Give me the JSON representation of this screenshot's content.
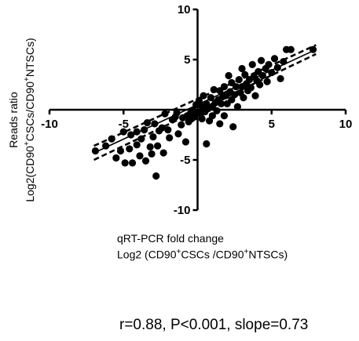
{
  "chart_data": {
    "type": "scatter",
    "xlim": [
      -10,
      10
    ],
    "ylim": [
      -10,
      10
    ],
    "x_ticks": [
      -10,
      -5,
      5,
      10
    ],
    "y_ticks": [
      10,
      5,
      -5,
      -10
    ],
    "tick_labels": {
      "x_neg10": "-10",
      "x_neg5": "-5",
      "x_5": "5",
      "x_10": "10",
      "y_10": "10",
      "y_5": "5",
      "y_neg5": "-5",
      "y_neg10": "-10"
    },
    "ylabel_line1": "Reads  ratio",
    "ylabel_line2_main": "Log2(CD90",
    "ylabel_line2_mid": "CSCs/CD90",
    "ylabel_line2_end": "NTSCs)",
    "xlabel_line1": "qRT-PCR fold change",
    "xlabel_line2_main": "Log2 (CD90",
    "xlabel_line2_mid": "CSCs /CD90",
    "xlabel_line2_end": "NTSCs)",
    "superscript": "+",
    "annotation": "r=0.88, P<0.001, slope=0.73",
    "fit_line": {
      "slope": 0.73,
      "x_range": [
        -7,
        8
      ],
      "y_start": -4.3,
      "y_end": 6.0
    },
    "conf_band_halfwidth": 0.45,
    "points": [
      {
        "x": -6.9,
        "y": -4.1
      },
      {
        "x": -6.2,
        "y": -3.6
      },
      {
        "x": -5.8,
        "y": -2.9
      },
      {
        "x": -5.5,
        "y": -4.8
      },
      {
        "x": -5.2,
        "y": -4.1
      },
      {
        "x": -5.0,
        "y": -2.2
      },
      {
        "x": -4.9,
        "y": -5.3
      },
      {
        "x": -4.6,
        "y": -3.9
      },
      {
        "x": -4.5,
        "y": -2.5
      },
      {
        "x": -4.4,
        "y": -5.3
      },
      {
        "x": -4.1,
        "y": -2.2
      },
      {
        "x": -4.1,
        "y": -3.5
      },
      {
        "x": -3.9,
        "y": -4.6
      },
      {
        "x": -3.8,
        "y": -2.9
      },
      {
        "x": -3.6,
        "y": -2.0
      },
      {
        "x": -3.5,
        "y": -5.1
      },
      {
        "x": -3.4,
        "y": -1.3
      },
      {
        "x": -3.2,
        "y": -3.7
      },
      {
        "x": -3.1,
        "y": -4.4
      },
      {
        "x": -3.0,
        "y": -2.7
      },
      {
        "x": -2.9,
        "y": -1.4
      },
      {
        "x": -2.8,
        "y": -6.6
      },
      {
        "x": -2.7,
        "y": -3.6
      },
      {
        "x": -2.6,
        "y": -2.1
      },
      {
        "x": -2.4,
        "y": -1.8
      },
      {
        "x": -2.3,
        "y": -4.3
      },
      {
        "x": -2.2,
        "y": -0.4
      },
      {
        "x": -2.0,
        "y": -2.0
      },
      {
        "x": -1.9,
        "y": -2.8
      },
      {
        "x": -1.7,
        "y": -1.0
      },
      {
        "x": -1.5,
        "y": -0.7
      },
      {
        "x": -1.4,
        "y": -0.3
      },
      {
        "x": -1.3,
        "y": -2.4
      },
      {
        "x": -1.1,
        "y": -1.5
      },
      {
        "x": -1.0,
        "y": -0.8
      },
      {
        "x": -0.8,
        "y": -3.2
      },
      {
        "x": -0.7,
        "y": -0.6
      },
      {
        "x": -0.6,
        "y": -1.2
      },
      {
        "x": -0.5,
        "y": -0.4
      },
      {
        "x": -0.4,
        "y": -0.9
      },
      {
        "x": -0.3,
        "y": -0.1
      },
      {
        "x": -0.2,
        "y": -0.7
      },
      {
        "x": -0.1,
        "y": 0.5
      },
      {
        "x": 0.0,
        "y": -0.3
      },
      {
        "x": 0.1,
        "y": 0.9
      },
      {
        "x": 0.2,
        "y": -0.4
      },
      {
        "x": 0.3,
        "y": 0.3
      },
      {
        "x": 0.3,
        "y": -0.9
      },
      {
        "x": 0.4,
        "y": 1.4
      },
      {
        "x": 0.5,
        "y": -0.2
      },
      {
        "x": 0.6,
        "y": -3.4
      },
      {
        "x": 0.6,
        "y": 0.6
      },
      {
        "x": 0.7,
        "y": 0.1
      },
      {
        "x": 0.8,
        "y": -1.1
      },
      {
        "x": 0.9,
        "y": 1.2
      },
      {
        "x": 1.0,
        "y": 0.3
      },
      {
        "x": 1.0,
        "y": -0.6
      },
      {
        "x": 1.1,
        "y": 2.0
      },
      {
        "x": 1.2,
        "y": 0.7
      },
      {
        "x": 1.3,
        "y": -0.1
      },
      {
        "x": 1.4,
        "y": 1.0
      },
      {
        "x": 1.5,
        "y": 1.9
      },
      {
        "x": 1.5,
        "y": -1.4
      },
      {
        "x": 1.6,
        "y": 0.6
      },
      {
        "x": 1.7,
        "y": 1.3
      },
      {
        "x": 1.8,
        "y": 2.3
      },
      {
        "x": 1.8,
        "y": -0.6
      },
      {
        "x": 1.9,
        "y": 1.4
      },
      {
        "x": 2.0,
        "y": 0.6
      },
      {
        "x": 2.1,
        "y": 3.4
      },
      {
        "x": 2.2,
        "y": 1.8
      },
      {
        "x": 2.3,
        "y": 1.0
      },
      {
        "x": 2.3,
        "y": 2.7
      },
      {
        "x": 2.4,
        "y": -1.7
      },
      {
        "x": 2.5,
        "y": 1.5
      },
      {
        "x": 2.6,
        "y": 2.3
      },
      {
        "x": 2.7,
        "y": 0.3
      },
      {
        "x": 2.8,
        "y": 3.0
      },
      {
        "x": 2.9,
        "y": 1.7
      },
      {
        "x": 3.0,
        "y": 4.1
      },
      {
        "x": 3.0,
        "y": 2.3
      },
      {
        "x": 3.1,
        "y": 1.2
      },
      {
        "x": 3.2,
        "y": 3.5
      },
      {
        "x": 3.3,
        "y": 2.6
      },
      {
        "x": 3.4,
        "y": 1.9
      },
      {
        "x": 3.5,
        "y": 3.0
      },
      {
        "x": 3.6,
        "y": 2.2
      },
      {
        "x": 3.7,
        "y": 4.5
      },
      {
        "x": 3.8,
        "y": 3.3
      },
      {
        "x": 3.9,
        "y": 1.4
      },
      {
        "x": 4.0,
        "y": 2.9
      },
      {
        "x": 4.1,
        "y": 3.8
      },
      {
        "x": 4.2,
        "y": 2.5
      },
      {
        "x": 4.3,
        "y": 4.9
      },
      {
        "x": 4.4,
        "y": 3.4
      },
      {
        "x": 4.6,
        "y": 4.1
      },
      {
        "x": 4.7,
        "y": 2.8
      },
      {
        "x": 4.8,
        "y": 4.5
      },
      {
        "x": 5.0,
        "y": 3.7
      },
      {
        "x": 5.2,
        "y": 5.1
      },
      {
        "x": 5.4,
        "y": 4.2
      },
      {
        "x": 5.6,
        "y": 3.1
      },
      {
        "x": 5.8,
        "y": 4.8
      },
      {
        "x": 6.0,
        "y": 6.0
      },
      {
        "x": 6.3,
        "y": 6.0
      },
      {
        "x": 7.8,
        "y": 6.0
      }
    ]
  }
}
